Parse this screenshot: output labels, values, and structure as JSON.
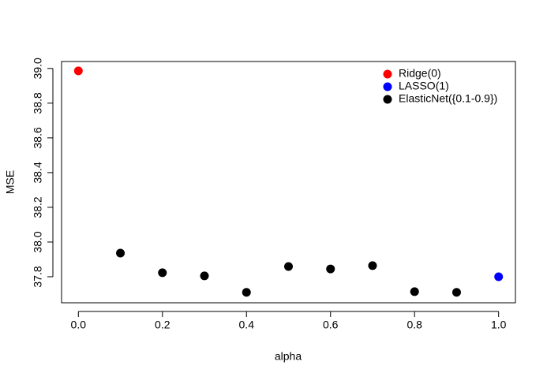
{
  "chart_data": {
    "type": "scatter",
    "x_label": "alpha",
    "y_label": "MSE",
    "xlim": [
      -0.04,
      1.04
    ],
    "ylim": [
      37.65,
      39.04
    ],
    "xticks": [
      {
        "value": 0,
        "label": "0.0"
      },
      0.2,
      0.4,
      0.6,
      0.8,
      {
        "value": 1,
        "label": "1.0"
      }
    ],
    "yticks": [
      37.8,
      {
        "value": 38,
        "label": "38.0"
      },
      38.2,
      38.4,
      38.6,
      38.8,
      {
        "value": 39,
        "label": "39.0"
      }
    ],
    "legend_position": "top-right",
    "series": [
      {
        "name": "Ridge(0)",
        "color": "#ff0000",
        "x": [
          0
        ],
        "values": [
          38.986
        ]
      },
      {
        "name": "LASSO(1)",
        "color": "#0000ff",
        "x": [
          1
        ],
        "values": [
          37.8
        ]
      },
      {
        "name": "ElasticNet({0.1-0.9})",
        "color": "#000000",
        "x": [
          0.1,
          0.2,
          0.3,
          0.4,
          0.5,
          0.6,
          0.7,
          0.8,
          0.9
        ],
        "values": [
          37.936,
          37.823,
          37.805,
          37.71,
          37.859,
          37.845,
          37.864,
          37.714,
          37.71
        ]
      }
    ]
  }
}
